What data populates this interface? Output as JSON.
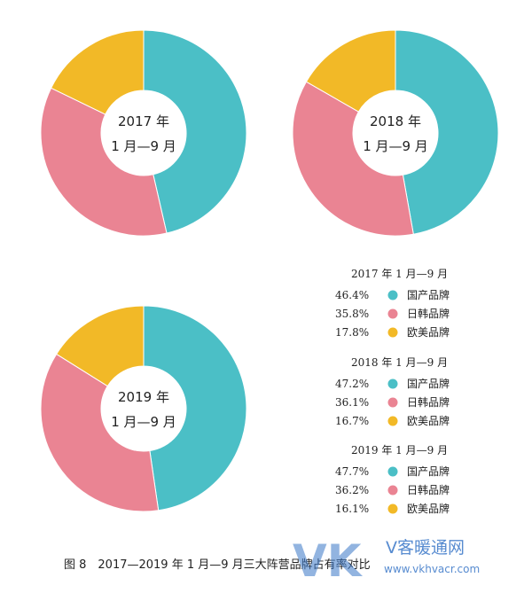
{
  "chart_data": [
    {
      "type": "pie",
      "variant": "donut",
      "center_label": [
        "2017 年",
        "1 月—9 月"
      ],
      "legend_title": "2017 年 1 月—9 月",
      "categories": [
        "国产品牌",
        "日韩品牌",
        "欧美品牌"
      ],
      "values": [
        46.4,
        35.8,
        17.8
      ],
      "labels": [
        "46.4%",
        "35.8%",
        "17.8%"
      ],
      "colors": [
        "#4bbfc6",
        "#ea8493",
        "#f2b927"
      ]
    },
    {
      "type": "pie",
      "variant": "donut",
      "center_label": [
        "2018 年",
        "1 月—9 月"
      ],
      "legend_title": "2018 年 1 月—9 月",
      "categories": [
        "国产品牌",
        "日韩品牌",
        "欧美品牌"
      ],
      "values": [
        47.2,
        36.1,
        16.7
      ],
      "labels": [
        "47.2%",
        "36.1%",
        "16.7%"
      ],
      "colors": [
        "#4bbfc6",
        "#ea8493",
        "#f2b927"
      ]
    },
    {
      "type": "pie",
      "variant": "donut",
      "center_label": [
        "2019 年",
        "1 月—9 月"
      ],
      "legend_title": "2019 年 1 月—9 月",
      "categories": [
        "国产品牌",
        "日韩品牌",
        "欧美品牌"
      ],
      "values": [
        47.7,
        36.2,
        16.1
      ],
      "labels": [
        "47.7%",
        "36.2%",
        "16.1%"
      ],
      "colors": [
        "#4bbfc6",
        "#ea8493",
        "#f2b927"
      ]
    }
  ],
  "caption": "图 8　2017—2019 年 1 月—9 月三大阵营品牌占有率对比",
  "watermark": {
    "logo_text": "VK",
    "site_name": "V客暖通网",
    "url": "www.vkhvacr.com"
  }
}
